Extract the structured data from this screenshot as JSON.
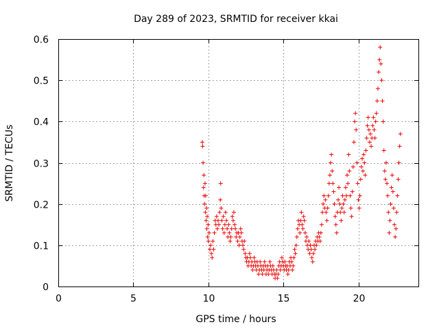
{
  "chart_data": {
    "type": "scatter",
    "title": "Day 289 of 2023, SRMTID for receiver kkai",
    "xlabel": "GPS time / hours",
    "ylabel": "SRMTID / TECUs",
    "xlim": [
      0,
      24
    ],
    "ylim": [
      0,
      0.6
    ],
    "x_ticks": [
      0,
      5,
      10,
      15,
      20
    ],
    "x_tick_labels": [
      "0",
      "5",
      "10",
      "15",
      "20"
    ],
    "y_ticks": [
      0,
      0.1,
      0.2,
      0.3,
      0.4,
      0.5,
      0.6
    ],
    "y_tick_labels": [
      "0",
      "0.1",
      "0.2",
      "0.3",
      "0.4",
      "0.5",
      "0.6"
    ],
    "grid": true,
    "marker": "plus",
    "color": "#ee0000",
    "series": [
      {
        "name": "SRMTID",
        "points": [
          [
            9.6,
            0.35
          ],
          [
            9.62,
            0.34
          ],
          [
            9.65,
            0.3
          ],
          [
            9.68,
            0.24
          ],
          [
            9.7,
            0.27
          ],
          [
            9.72,
            0.22
          ],
          [
            9.75,
            0.2
          ],
          [
            9.78,
            0.25
          ],
          [
            9.8,
            0.18
          ],
          [
            9.82,
            0.22
          ],
          [
            9.85,
            0.16
          ],
          [
            9.88,
            0.19
          ],
          [
            9.9,
            0.14
          ],
          [
            9.92,
            0.17
          ],
          [
            9.95,
            0.12
          ],
          [
            9.98,
            0.15
          ],
          [
            10.0,
            0.11
          ],
          [
            10.05,
            0.13
          ],
          [
            10.1,
            0.09
          ],
          [
            10.15,
            0.1
          ],
          [
            10.2,
            0.08
          ],
          [
            10.25,
            0.07
          ],
          [
            10.3,
            0.11
          ],
          [
            10.35,
            0.09
          ],
          [
            10.4,
            0.13
          ],
          [
            10.45,
            0.16
          ],
          [
            10.5,
            0.15
          ],
          [
            10.55,
            0.17
          ],
          [
            10.6,
            0.14
          ],
          [
            10.65,
            0.16
          ],
          [
            10.7,
            0.15
          ],
          [
            10.75,
            0.18
          ],
          [
            10.8,
            0.21
          ],
          [
            10.82,
            0.25
          ],
          [
            10.85,
            0.19
          ],
          [
            10.9,
            0.16
          ],
          [
            10.95,
            0.14
          ],
          [
            11.0,
            0.17
          ],
          [
            11.05,
            0.13
          ],
          [
            11.1,
            0.15
          ],
          [
            11.15,
            0.18
          ],
          [
            11.2,
            0.16
          ],
          [
            11.25,
            0.14
          ],
          [
            11.3,
            0.12
          ],
          [
            11.35,
            0.15
          ],
          [
            11.4,
            0.13
          ],
          [
            11.45,
            0.11
          ],
          [
            11.5,
            0.12
          ],
          [
            11.55,
            0.14
          ],
          [
            11.6,
            0.17
          ],
          [
            11.65,
            0.16
          ],
          [
            11.7,
            0.18
          ],
          [
            11.75,
            0.15
          ],
          [
            11.8,
            0.14
          ],
          [
            11.85,
            0.12
          ],
          [
            11.9,
            0.13
          ],
          [
            11.95,
            0.11
          ],
          [
            12.0,
            0.13
          ],
          [
            12.05,
            0.1
          ],
          [
            12.1,
            0.12
          ],
          [
            12.15,
            0.14
          ],
          [
            12.2,
            0.13
          ],
          [
            12.25,
            0.11
          ],
          [
            12.3,
            0.1
          ],
          [
            12.35,
            0.09
          ],
          [
            12.4,
            0.11
          ],
          [
            12.45,
            0.08
          ],
          [
            12.5,
            0.07
          ],
          [
            12.55,
            0.06
          ],
          [
            12.6,
            0.07
          ],
          [
            12.65,
            0.05
          ],
          [
            12.7,
            0.06
          ],
          [
            12.75,
            0.08
          ],
          [
            12.8,
            0.07
          ],
          [
            12.85,
            0.05
          ],
          [
            12.9,
            0.06
          ],
          [
            12.95,
            0.04
          ],
          [
            13.0,
            0.05
          ],
          [
            13.05,
            0.07
          ],
          [
            13.1,
            0.06
          ],
          [
            13.15,
            0.05
          ],
          [
            13.2,
            0.04
          ],
          [
            13.25,
            0.06
          ],
          [
            13.3,
            0.05
          ],
          [
            13.35,
            0.03
          ],
          [
            13.4,
            0.04
          ],
          [
            13.45,
            0.06
          ],
          [
            13.5,
            0.05
          ],
          [
            13.55,
            0.04
          ],
          [
            13.6,
            0.03
          ],
          [
            13.65,
            0.05
          ],
          [
            13.7,
            0.04
          ],
          [
            13.75,
            0.06
          ],
          [
            13.8,
            0.05
          ],
          [
            13.85,
            0.03
          ],
          [
            13.9,
            0.04
          ],
          [
            13.95,
            0.05
          ],
          [
            14.0,
            0.03
          ],
          [
            14.05,
            0.04
          ],
          [
            14.1,
            0.06
          ],
          [
            14.15,
            0.05
          ],
          [
            14.2,
            0.04
          ],
          [
            14.25,
            0.03
          ],
          [
            14.3,
            0.05
          ],
          [
            14.35,
            0.04
          ],
          [
            14.4,
            0.03
          ],
          [
            14.45,
            0.02
          ],
          [
            14.5,
            0.03
          ],
          [
            14.55,
            0.04
          ],
          [
            14.6,
            0.02
          ],
          [
            14.65,
            0.03
          ],
          [
            14.7,
            0.05
          ],
          [
            14.75,
            0.06
          ],
          [
            14.8,
            0.04
          ],
          [
            14.85,
            0.05
          ],
          [
            14.9,
            0.07
          ],
          [
            14.95,
            0.06
          ],
          [
            15.0,
            0.05
          ],
          [
            15.05,
            0.04
          ],
          [
            15.1,
            0.06
          ],
          [
            15.15,
            0.05
          ],
          [
            15.2,
            0.04
          ],
          [
            15.25,
            0.05
          ],
          [
            15.3,
            0.03
          ],
          [
            15.35,
            0.04
          ],
          [
            15.4,
            0.06
          ],
          [
            15.45,
            0.05
          ],
          [
            15.5,
            0.07
          ],
          [
            15.55,
            0.06
          ],
          [
            15.6,
            0.04
          ],
          [
            15.65,
            0.05
          ],
          [
            15.7,
            0.07
          ],
          [
            15.75,
            0.09
          ],
          [
            15.8,
            0.08
          ],
          [
            15.85,
            0.1
          ],
          [
            15.9,
            0.12
          ],
          [
            15.95,
            0.14
          ],
          [
            16.0,
            0.16
          ],
          [
            16.05,
            0.15
          ],
          [
            16.1,
            0.13
          ],
          [
            16.15,
            0.16
          ],
          [
            16.2,
            0.18
          ],
          [
            16.25,
            0.15
          ],
          [
            16.3,
            0.14
          ],
          [
            16.35,
            0.17
          ],
          [
            16.4,
            0.16
          ],
          [
            16.45,
            0.13
          ],
          [
            16.5,
            0.11
          ],
          [
            16.55,
            0.12
          ],
          [
            16.6,
            0.1
          ],
          [
            16.65,
            0.09
          ],
          [
            16.7,
            0.11
          ],
          [
            16.75,
            0.08
          ],
          [
            16.8,
            0.1
          ],
          [
            16.85,
            0.09
          ],
          [
            16.9,
            0.07
          ],
          [
            16.95,
            0.06
          ],
          [
            17.0,
            0.08
          ],
          [
            17.05,
            0.1
          ],
          [
            17.1,
            0.09
          ],
          [
            17.15,
            0.11
          ],
          [
            17.2,
            0.1
          ],
          [
            17.25,
            0.12
          ],
          [
            17.3,
            0.11
          ],
          [
            17.35,
            0.13
          ],
          [
            17.4,
            0.12
          ],
          [
            17.45,
            0.11
          ],
          [
            17.5,
            0.13
          ],
          [
            17.55,
            0.15
          ],
          [
            17.6,
            0.18
          ],
          [
            17.65,
            0.2
          ],
          [
            17.7,
            0.22
          ],
          [
            17.75,
            0.19
          ],
          [
            17.8,
            0.21
          ],
          [
            17.85,
            0.18
          ],
          [
            17.9,
            0.16
          ],
          [
            17.95,
            0.19
          ],
          [
            18.0,
            0.22
          ],
          [
            18.05,
            0.25
          ],
          [
            18.1,
            0.27
          ],
          [
            18.15,
            0.3
          ],
          [
            18.2,
            0.32
          ],
          [
            18.25,
            0.28
          ],
          [
            18.3,
            0.25
          ],
          [
            18.35,
            0.23
          ],
          [
            18.4,
            0.2
          ],
          [
            18.45,
            0.17
          ],
          [
            18.5,
            0.15
          ],
          [
            18.55,
            0.13
          ],
          [
            18.6,
            0.18
          ],
          [
            18.65,
            0.21
          ],
          [
            18.7,
            0.24
          ],
          [
            18.75,
            0.2
          ],
          [
            18.8,
            0.18
          ],
          [
            18.85,
            0.16
          ],
          [
            18.9,
            0.19
          ],
          [
            18.95,
            0.22
          ],
          [
            19.0,
            0.2
          ],
          [
            19.05,
            0.18
          ],
          [
            19.1,
            0.21
          ],
          [
            19.15,
            0.24
          ],
          [
            19.2,
            0.22
          ],
          [
            19.25,
            0.27
          ],
          [
            19.3,
            0.25
          ],
          [
            19.35,
            0.32
          ],
          [
            19.4,
            0.28
          ],
          [
            19.45,
            0.22
          ],
          [
            19.5,
            0.19
          ],
          [
            19.55,
            0.17
          ],
          [
            19.6,
            0.23
          ],
          [
            19.65,
            0.29
          ],
          [
            19.7,
            0.35
          ],
          [
            19.75,
            0.4
          ],
          [
            19.8,
            0.42
          ],
          [
            19.85,
            0.38
          ],
          [
            19.9,
            0.3
          ],
          [
            19.95,
            0.25
          ],
          [
            20.0,
            0.21
          ],
          [
            20.05,
            0.19
          ],
          [
            20.1,
            0.22
          ],
          [
            20.15,
            0.26
          ],
          [
            20.2,
            0.29
          ],
          [
            20.25,
            0.31
          ],
          [
            20.3,
            0.28
          ],
          [
            20.35,
            0.32
          ],
          [
            20.4,
            0.3
          ],
          [
            20.45,
            0.27
          ],
          [
            20.5,
            0.33
          ],
          [
            20.55,
            0.36
          ],
          [
            20.6,
            0.39
          ],
          [
            20.65,
            0.41
          ],
          [
            20.7,
            0.38
          ],
          [
            20.75,
            0.35
          ],
          [
            20.8,
            0.37
          ],
          [
            20.85,
            0.34
          ],
          [
            20.9,
            0.36
          ],
          [
            20.95,
            0.39
          ],
          [
            21.0,
            0.41
          ],
          [
            21.05,
            0.38
          ],
          [
            21.1,
            0.36
          ],
          [
            21.15,
            0.4
          ],
          [
            21.2,
            0.42
          ],
          [
            21.25,
            0.45
          ],
          [
            21.3,
            0.48
          ],
          [
            21.35,
            0.52
          ],
          [
            21.4,
            0.55
          ],
          [
            21.45,
            0.58
          ],
          [
            21.5,
            0.54
          ],
          [
            21.55,
            0.5
          ],
          [
            21.6,
            0.45
          ],
          [
            21.65,
            0.4
          ],
          [
            21.7,
            0.33
          ],
          [
            21.75,
            0.28
          ],
          [
            21.8,
            0.26
          ],
          [
            21.85,
            0.3
          ],
          [
            21.9,
            0.25
          ],
          [
            21.95,
            0.22
          ],
          [
            22.0,
            0.18
          ],
          [
            22.05,
            0.13
          ],
          [
            22.1,
            0.16
          ],
          [
            22.15,
            0.2
          ],
          [
            22.2,
            0.24
          ],
          [
            22.25,
            0.27
          ],
          [
            22.3,
            0.23
          ],
          [
            22.35,
            0.19
          ],
          [
            22.4,
            0.15
          ],
          [
            22.45,
            0.12
          ],
          [
            22.5,
            0.14
          ],
          [
            22.55,
            0.18
          ],
          [
            22.6,
            0.22
          ],
          [
            22.65,
            0.26
          ],
          [
            22.7,
            0.3
          ],
          [
            22.75,
            0.34
          ],
          [
            22.8,
            0.37
          ]
        ]
      }
    ]
  }
}
